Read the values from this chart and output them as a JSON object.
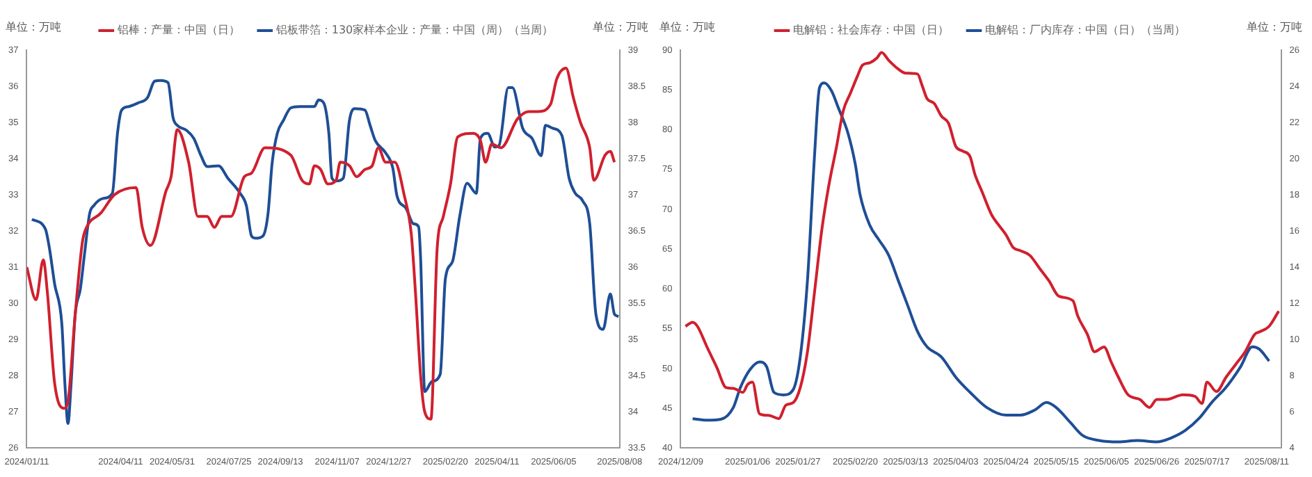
{
  "chart_data": [
    {
      "type": "line",
      "ylabel": "单位：万吨",
      "y2label": "单位：万吨",
      "legend": "top",
      "xlim": [
        "2024-01-11",
        "2025-08-08"
      ],
      "xticks": [
        {
          "value": "2024-01-11",
          "label": "2024/01/11"
        },
        {
          "value": "2024-04-11",
          "label": "2024/04/11"
        },
        {
          "value": "2024-05-31",
          "label": "2024/05/31"
        },
        {
          "value": "2024-07-25",
          "label": "2024/07/25"
        },
        {
          "value": "2024-09-13",
          "label": "2024/09/13"
        },
        {
          "value": "2024-11-07",
          "label": "2024/11/07"
        },
        {
          "value": "2024-12-27",
          "label": "2024/12/27"
        },
        {
          "value": "2025-02-20",
          "label": "2025/02/20"
        },
        {
          "value": "2025-04-11",
          "label": "2025/04/11"
        },
        {
          "value": "2025-06-05",
          "label": "2025/06/05"
        },
        {
          "value": "2025-08-08",
          "label": "2025/08/08"
        }
      ],
      "ylim": [
        26,
        37
      ],
      "yticks": [
        26,
        27,
        28,
        29,
        30,
        31,
        32,
        33,
        34,
        35,
        36,
        37
      ],
      "y2lim": [
        33.5,
        39
      ],
      "y2ticks": [
        {
          "value": 33.5,
          "label": "33.5"
        },
        34,
        {
          "value": 34.5,
          "label": "34.5"
        },
        35,
        {
          "value": 35.5,
          "label": "35.5"
        },
        36,
        {
          "value": 36.5,
          "label": "36.5"
        },
        37,
        {
          "value": 37.5,
          "label": "37.5"
        },
        38,
        {
          "value": 38.5,
          "label": "38.5"
        },
        39
      ],
      "series": [
        {
          "name": "铝棒：产量：中国（日）",
          "color": "#d0202e",
          "x": [
            "2024-01-11",
            "2024-01-20",
            "2024-01-27",
            "2024-01-31",
            "2024-02-07",
            "2024-02-16",
            "2024-02-20",
            "2024-02-27",
            "2024-03-05",
            "2024-03-09",
            "2024-03-23",
            "2024-04-05",
            "2024-04-26",
            "2024-05-02",
            "2024-05-10",
            "2024-05-25",
            "2024-05-30",
            "2024-06-05",
            "2024-06-16",
            "2024-06-25",
            "2024-07-04",
            "2024-07-11",
            "2024-07-18",
            "2024-07-27",
            "2024-08-09",
            "2024-08-16",
            "2024-08-29",
            "2024-09-23",
            "2024-10-04",
            "2024-10-11",
            "2024-10-16",
            "2024-10-22",
            "2024-10-29",
            "2024-11-06",
            "2024-11-10",
            "2024-11-19",
            "2024-11-26",
            "2024-12-04",
            "2024-12-11",
            "2024-12-17",
            "2024-12-24",
            "2025-01-02",
            "2025-01-11",
            "2025-01-18",
            "2025-01-22",
            "2025-01-27",
            "2025-01-31",
            "2025-02-06",
            "2025-02-12",
            "2025-02-18",
            "2025-02-25",
            "2025-03-04",
            "2025-03-19",
            "2025-03-26",
            "2025-03-31",
            "2025-04-06",
            "2025-04-15",
            "2025-05-01",
            "2025-05-12",
            "2025-05-21",
            "2025-06-02",
            "2025-06-08",
            "2025-06-17",
            "2025-06-24",
            "2025-07-01",
            "2025-07-10",
            "2025-07-14",
            "2025-07-25",
            "2025-07-30",
            "2025-08-03"
          ],
          "values": [
            31.0,
            30.1,
            31.2,
            30.3,
            27.8,
            27.1,
            27.3,
            29.7,
            31.7,
            32.1,
            32.5,
            33.0,
            33.2,
            32.1,
            31.6,
            33.1,
            33.5,
            34.8,
            33.9,
            32.4,
            32.4,
            32.1,
            32.4,
            32.4,
            33.5,
            33.6,
            34.3,
            34.1,
            33.4,
            33.3,
            33.8,
            33.7,
            33.3,
            33.4,
            33.9,
            33.8,
            33.5,
            33.7,
            33.8,
            34.3,
            33.9,
            33.9,
            33.0,
            31.9,
            30.3,
            28.0,
            27.0,
            26.8,
            31.5,
            32.4,
            33.3,
            34.6,
            34.7,
            34.5,
            33.9,
            34.4,
            34.3,
            35.1,
            35.3,
            35.3,
            35.5,
            36.2,
            36.5,
            35.7,
            35.0,
            34.3,
            33.4,
            34.1,
            34.2,
            33.9
          ]
        },
        {
          "name": "铝板带箔：130家样本企业：产量：中国（周）（当周）",
          "color": "#1f4e96",
          "axis": "y2",
          "x": [
            "2024-01-16",
            "2024-01-29",
            "2024-02-02",
            "2024-02-07",
            "2024-02-14",
            "2024-02-17",
            "2024-02-20",
            "2024-02-23",
            "2024-02-27",
            "2024-03-03",
            "2024-03-07",
            "2024-03-12",
            "2024-03-16",
            "2024-03-25",
            "2024-04-03",
            "2024-04-08",
            "2024-04-12",
            "2024-04-19",
            "2024-04-28",
            "2024-05-07",
            "2024-05-14",
            "2024-05-20",
            "2024-05-27",
            "2024-06-01",
            "2024-06-05",
            "2024-06-14",
            "2024-06-21",
            "2024-06-28",
            "2024-07-04",
            "2024-07-15",
            "2024-07-24",
            "2024-08-05",
            "2024-08-11",
            "2024-08-16",
            "2024-08-20",
            "2024-08-27",
            "2024-09-01",
            "2024-09-05",
            "2024-09-10",
            "2024-09-16",
            "2024-09-23",
            "2024-10-02",
            "2024-10-16",
            "2024-10-20",
            "2024-10-25",
            "2024-10-30",
            "2024-11-02",
            "2024-11-06",
            "2024-11-13",
            "2024-11-19",
            "2024-11-24",
            "2024-12-04",
            "2024-12-09",
            "2024-12-14",
            "2024-12-24",
            "2024-12-31",
            "2025-01-04",
            "2025-01-13",
            "2025-01-20",
            "2025-01-25",
            "2025-01-27",
            "2025-01-31",
            "2025-02-07",
            "2025-02-15",
            "2025-02-20",
            "2025-02-27",
            "2025-03-06",
            "2025-03-13",
            "2025-03-22",
            "2025-03-26",
            "2025-04-02",
            "2025-04-09",
            "2025-04-13",
            "2025-04-22",
            "2025-04-26",
            "2025-05-06",
            "2025-05-15",
            "2025-05-24",
            "2025-05-28",
            "2025-06-04",
            "2025-06-13",
            "2025-06-20",
            "2025-06-26",
            "2025-07-03",
            "2025-07-10",
            "2025-07-16",
            "2025-07-23",
            "2025-07-30",
            "2025-08-03",
            "2025-08-07"
          ],
          "values": [
            36.66,
            36.53,
            36.26,
            35.77,
            35.22,
            34.39,
            33.84,
            34.39,
            35.35,
            35.7,
            36.18,
            36.74,
            36.85,
            36.95,
            37.02,
            37.85,
            38.17,
            38.22,
            38.27,
            38.34,
            38.57,
            38.58,
            38.55,
            38.06,
            37.96,
            37.89,
            37.78,
            37.54,
            37.39,
            37.4,
            37.23,
            37.02,
            36.85,
            36.43,
            36.4,
            36.43,
            36.74,
            37.44,
            37.85,
            38.03,
            38.2,
            38.22,
            38.22,
            38.31,
            38.27,
            37.85,
            37.23,
            37.19,
            37.23,
            38.03,
            38.19,
            38.17,
            37.96,
            37.75,
            37.58,
            37.37,
            36.99,
            36.81,
            36.6,
            36.56,
            36.12,
            34.28,
            34.42,
            34.52,
            35.84,
            36.08,
            36.71,
            37.16,
            37.02,
            37.78,
            37.85,
            37.66,
            37.68,
            38.48,
            38.48,
            37.92,
            37.78,
            37.54,
            37.96,
            37.92,
            37.82,
            37.23,
            37.02,
            36.92,
            36.6,
            35.35,
            35.14,
            35.63,
            35.35,
            35.32
          ]
        }
      ]
    },
    {
      "type": "line",
      "ylabel": "单位：万吨",
      "y2label": "单位：万吨",
      "legend": "top",
      "xlim": [
        "2024-12-09",
        "2025-08-17"
      ],
      "xticks": [
        {
          "value": "2024-12-09",
          "label": "2024/12/09"
        },
        {
          "value": "2025-01-06",
          "label": "2025/01/06"
        },
        {
          "value": "2025-01-27",
          "label": "2025/01/27"
        },
        {
          "value": "2025-02-20",
          "label": "2025/02/20"
        },
        {
          "value": "2025-03-13",
          "label": "2025/03/13"
        },
        {
          "value": "2025-04-03",
          "label": "2025/04/03"
        },
        {
          "value": "2025-04-24",
          "label": "2025/04/24"
        },
        {
          "value": "2025-05-15",
          "label": "2025/05/15"
        },
        {
          "value": "2025-06-05",
          "label": "2025/06/05"
        },
        {
          "value": "2025-06-26",
          "label": "2025/06/26"
        },
        {
          "value": "2025-07-17",
          "label": "2025/07/17"
        },
        {
          "value": "2025-08-11",
          "label": "2025/08/11"
        }
      ],
      "ylim": [
        40,
        90
      ],
      "yticks": [
        40,
        45,
        50,
        55,
        60,
        65,
        70,
        75,
        80,
        85,
        90
      ],
      "y2lim": [
        4,
        26
      ],
      "y2ticks": [
        4,
        6,
        8,
        10,
        12,
        14,
        16,
        18,
        20,
        22,
        24,
        26
      ],
      "series": [
        {
          "name": "电解铝：社会库存：中国（日）",
          "color": "#d0202e",
          "x": [
            "2024-12-11",
            "2024-12-14",
            "2024-12-16",
            "2024-12-20",
            "2024-12-24",
            "2024-12-28",
            "2024-12-31",
            "2025-01-04",
            "2025-01-06",
            "2025-01-08",
            "2025-01-11",
            "2025-01-15",
            "2025-01-19",
            "2025-01-22",
            "2025-01-25",
            "2025-01-28",
            "2025-01-31",
            "2025-02-03",
            "2025-02-06",
            "2025-02-09",
            "2025-02-12",
            "2025-02-15",
            "2025-02-18",
            "2025-02-21",
            "2025-02-23",
            "2025-02-26",
            "2025-03-01",
            "2025-03-03",
            "2025-03-06",
            "2025-03-10",
            "2025-03-13",
            "2025-03-18",
            "2025-03-20",
            "2025-03-22",
            "2025-03-25",
            "2025-03-28",
            "2025-03-31",
            "2025-04-03",
            "2025-04-06",
            "2025-04-09",
            "2025-04-11",
            "2025-04-14",
            "2025-04-18",
            "2025-04-21",
            "2025-04-24",
            "2025-04-27",
            "2025-04-30",
            "2025-05-04",
            "2025-05-08",
            "2025-05-12",
            "2025-05-16",
            "2025-05-22",
            "2025-05-24",
            "2025-05-28",
            "2025-05-31",
            "2025-06-04",
            "2025-06-07",
            "2025-06-10",
            "2025-06-14",
            "2025-06-19",
            "2025-06-23",
            "2025-06-26",
            "2025-06-30",
            "2025-07-07",
            "2025-07-12",
            "2025-07-15",
            "2025-07-17",
            "2025-07-21",
            "2025-07-25",
            "2025-07-29",
            "2025-08-02",
            "2025-08-06",
            "2025-08-08",
            "2025-08-12",
            "2025-08-16"
          ],
          "values": [
            55.3,
            55.8,
            55.3,
            52.7,
            50.2,
            47.6,
            47.5,
            47.0,
            48.0,
            48.3,
            44.3,
            44.1,
            43.7,
            45.4,
            45.7,
            47.6,
            52.1,
            59.7,
            67.4,
            73.1,
            77.6,
            82.4,
            84.6,
            86.8,
            88.1,
            88.4,
            89.0,
            89.7,
            88.7,
            87.6,
            87.1,
            87.0,
            85.5,
            83.9,
            83.3,
            81.7,
            80.8,
            77.9,
            77.3,
            76.6,
            74.4,
            72.2,
            69.3,
            68.0,
            66.8,
            65.2,
            64.8,
            64.2,
            62.6,
            61.0,
            59.1,
            58.5,
            56.6,
            54.3,
            52.1,
            52.7,
            50.8,
            48.9,
            46.7,
            46.1,
            45.1,
            46.1,
            46.1,
            46.7,
            46.5,
            45.6,
            48.3,
            47.1,
            48.9,
            50.5,
            52.1,
            54.3,
            54.6,
            55.3,
            57.2
          ]
        },
        {
          "name": "电解铝：厂内库存：中国（日）（当周）",
          "color": "#1f4e96",
          "axis": "y2",
          "x": [
            "2024-12-14",
            "2024-12-20",
            "2024-12-26",
            "2024-12-31",
            "2025-01-03",
            "2025-01-07",
            "2025-01-11",
            "2025-01-14",
            "2025-01-17",
            "2025-01-21",
            "2025-01-25",
            "2025-01-28",
            "2025-01-31",
            "2025-02-03",
            "2025-02-05",
            "2025-02-07",
            "2025-02-10",
            "2025-02-13",
            "2025-02-17",
            "2025-02-20",
            "2025-02-22",
            "2025-02-26",
            "2025-03-02",
            "2025-03-06",
            "2025-03-10",
            "2025-03-14",
            "2025-03-18",
            "2025-03-22",
            "2025-03-28",
            "2025-04-03",
            "2025-04-09",
            "2025-04-16",
            "2025-04-24",
            "2025-04-30",
            "2025-05-06",
            "2025-05-11",
            "2025-05-15",
            "2025-05-21",
            "2025-05-26",
            "2025-06-02",
            "2025-06-10",
            "2025-06-18",
            "2025-06-26",
            "2025-07-02",
            "2025-07-08",
            "2025-07-14",
            "2025-07-19",
            "2025-07-25",
            "2025-07-31",
            "2025-08-05",
            "2025-08-08",
            "2025-08-12"
          ],
          "values": [
            5.62,
            5.54,
            5.6,
            6.24,
            7.36,
            8.34,
            8.76,
            8.48,
            7.08,
            6.94,
            7.22,
            9.04,
            13.25,
            20.25,
            23.9,
            24.18,
            23.76,
            22.78,
            21.38,
            19.69,
            18.01,
            16.33,
            15.49,
            14.65,
            13.25,
            11.85,
            10.45,
            9.6,
            9.04,
            7.92,
            7.08,
            6.24,
            5.82,
            5.82,
            6.1,
            6.52,
            6.24,
            5.4,
            4.7,
            4.42,
            4.34,
            4.42,
            4.34,
            4.56,
            4.98,
            5.68,
            6.52,
            7.36,
            8.48,
            9.6,
            9.46,
            8.81
          ]
        }
      ]
    }
  ]
}
